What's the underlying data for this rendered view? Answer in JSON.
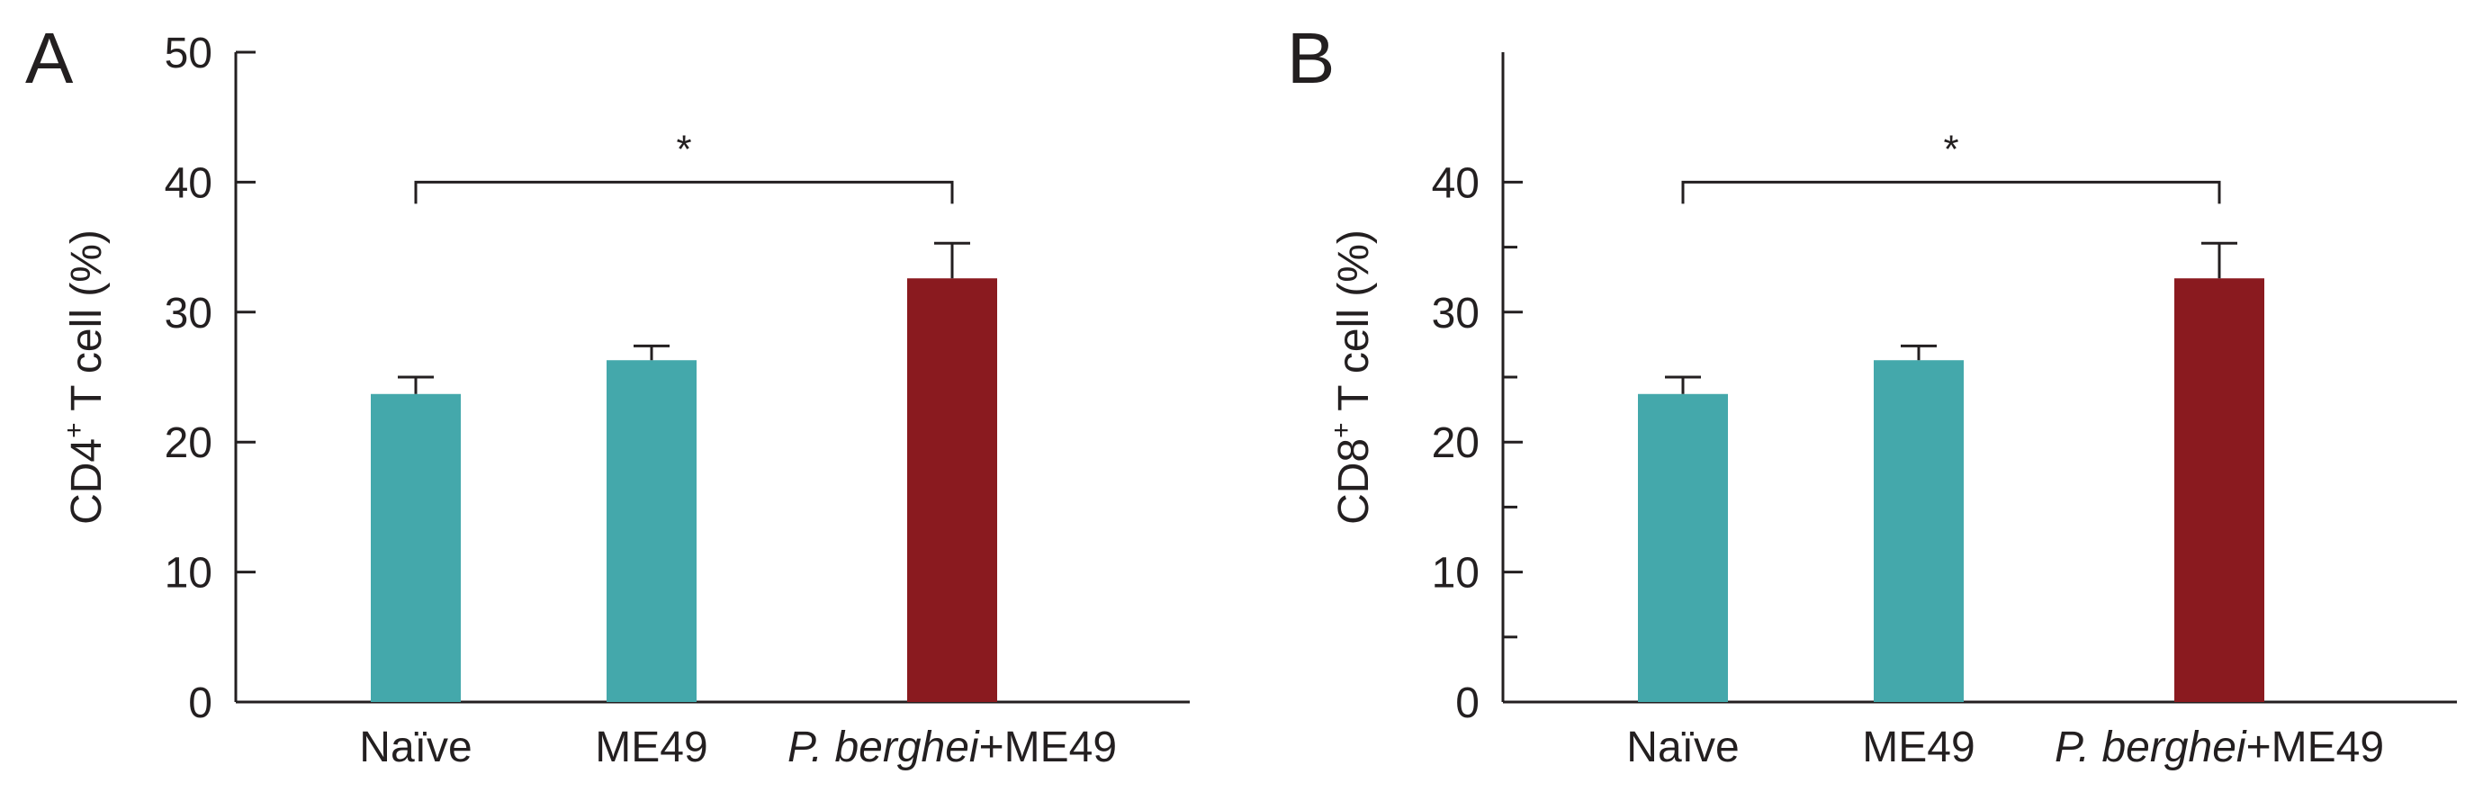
{
  "chart_data": [
    {
      "type": "bar",
      "panel_label": "A",
      "categories": [
        "Naïve",
        "ME49",
        "P. berghei+ME49"
      ],
      "category_parts": [
        [
          {
            "text": "Naïve",
            "italic": false
          }
        ],
        [
          {
            "text": "ME49",
            "italic": false
          }
        ],
        [
          {
            "text": "P. berghei",
            "italic": true
          },
          {
            "text": "+ME49",
            "italic": false
          }
        ]
      ],
      "values": [
        23.7,
        26.3,
        32.6
      ],
      "errors": [
        1.3,
        1.1,
        2.7
      ],
      "bar_colors": [
        "#44a8ab",
        "#44a8ab",
        "#8a1a1f"
      ],
      "ylabel_main": "CD4",
      "ylabel_sup": "+",
      "ylabel_rest": " T cell (%)",
      "ylim": [
        0,
        50
      ],
      "yticks": [
        0,
        10,
        20,
        30,
        40,
        50
      ],
      "minor_ticks": [],
      "significance": {
        "from": 0,
        "to": 2,
        "label": "*",
        "level": 40
      }
    },
    {
      "type": "bar",
      "panel_label": "B",
      "categories": [
        "Naïve",
        "ME49",
        "P. berghei+ME49"
      ],
      "category_parts": [
        [
          {
            "text": "Naïve",
            "italic": false
          }
        ],
        [
          {
            "text": "ME49",
            "italic": false
          }
        ],
        [
          {
            "text": "P. berghei",
            "italic": true
          },
          {
            "text": "+ME49",
            "italic": false
          }
        ]
      ],
      "values": [
        23.7,
        26.3,
        32.6
      ],
      "errors": [
        1.3,
        1.1,
        2.7
      ],
      "bar_colors": [
        "#44a8ab",
        "#44a8ab",
        "#8a1a1f"
      ],
      "ylabel_main": "CD8",
      "ylabel_sup": "+",
      "ylabel_rest": " T cell (%)",
      "ylim": [
        0,
        50
      ],
      "yticks": [
        0,
        10,
        20,
        30,
        40
      ],
      "minor_ticks": [
        5,
        15,
        25,
        35
      ],
      "significance": {
        "from": 0,
        "to": 2,
        "label": "*",
        "level": 40
      }
    }
  ]
}
